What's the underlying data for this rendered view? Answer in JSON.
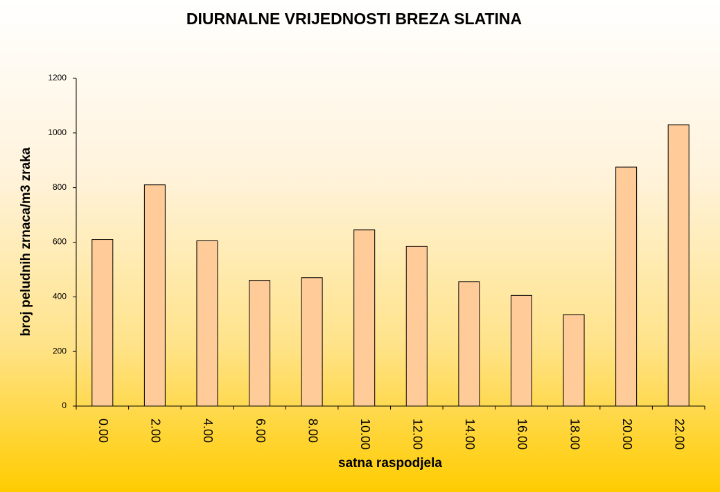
{
  "chart_data": {
    "type": "bar",
    "title": "DIURNALNE VRIJEDNOSTI BREZA SLATINA",
    "x_label": "satna raspodjela",
    "y_label": "broj peludnih zrnaca/m3 zraka",
    "categories": [
      "0.00",
      "2.00",
      "4.00",
      "6.00",
      "8.00",
      "10.00",
      "12.00",
      "14.00",
      "16.00",
      "18.00",
      "20.00",
      "22.00"
    ],
    "values": [
      610,
      810,
      605,
      460,
      470,
      645,
      585,
      455,
      405,
      335,
      875,
      1030
    ],
    "color": "#ffcc99",
    "ylim": [
      0,
      1200
    ],
    "yticks": [
      0,
      200,
      400,
      600,
      800,
      1000,
      1200
    ],
    "grid": false
  }
}
